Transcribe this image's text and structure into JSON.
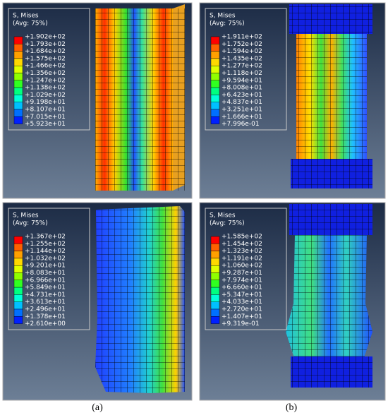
{
  "panels": [
    {
      "legend": {
        "title": "S, Mises",
        "subtitle": "(Avg: 75%)",
        "values": [
          "+1.902e+02",
          "+1.793e+02",
          "+1.684e+02",
          "+1.575e+02",
          "+1.466e+02",
          "+1.356e+02",
          "+1.247e+02",
          "+1.138e+02",
          "+1.029e+02",
          "+9.198e+01",
          "+8.107e+01",
          "+7.015e+01",
          "+5.923e+01"
        ]
      }
    },
    {
      "legend": {
        "title": "S, Mises",
        "subtitle": "(Avg: 75%)",
        "values": [
          "+1.911e+02",
          "+1.752e+02",
          "+1.594e+02",
          "+1.435e+02",
          "+1.277e+02",
          "+1.118e+02",
          "+9.594e+01",
          "+8.008e+01",
          "+6.423e+01",
          "+4.837e+01",
          "+3.251e+01",
          "+1.666e+01",
          "+7.996e-01"
        ]
      }
    },
    {
      "legend": {
        "title": "S, Mises",
        "subtitle": "(Avg: 75%)",
        "values": [
          "+1.367e+02",
          "+1.255e+02",
          "+1.144e+02",
          "+1.032e+02",
          "+9.201e+01",
          "+8.083e+01",
          "+6.966e+01",
          "+5.849e+01",
          "+4.731e+01",
          "+3.613e+01",
          "+2.496e+01",
          "+1.378e+01",
          "+2.610e+00"
        ]
      }
    },
    {
      "legend": {
        "title": "S, Mises",
        "subtitle": "(Avg: 75%)",
        "values": [
          "+1.585e+02",
          "+1.454e+02",
          "+1.323e+02",
          "+1.191e+02",
          "+1.060e+02",
          "+9.287e+01",
          "+7.974e+01",
          "+6.660e+01",
          "+5.347e+01",
          "+4.033e+01",
          "+2.720e+01",
          "+1.407e+01",
          "+9.319e-01"
        ]
      }
    }
  ],
  "captions": [
    "(a)",
    "(b)"
  ]
}
